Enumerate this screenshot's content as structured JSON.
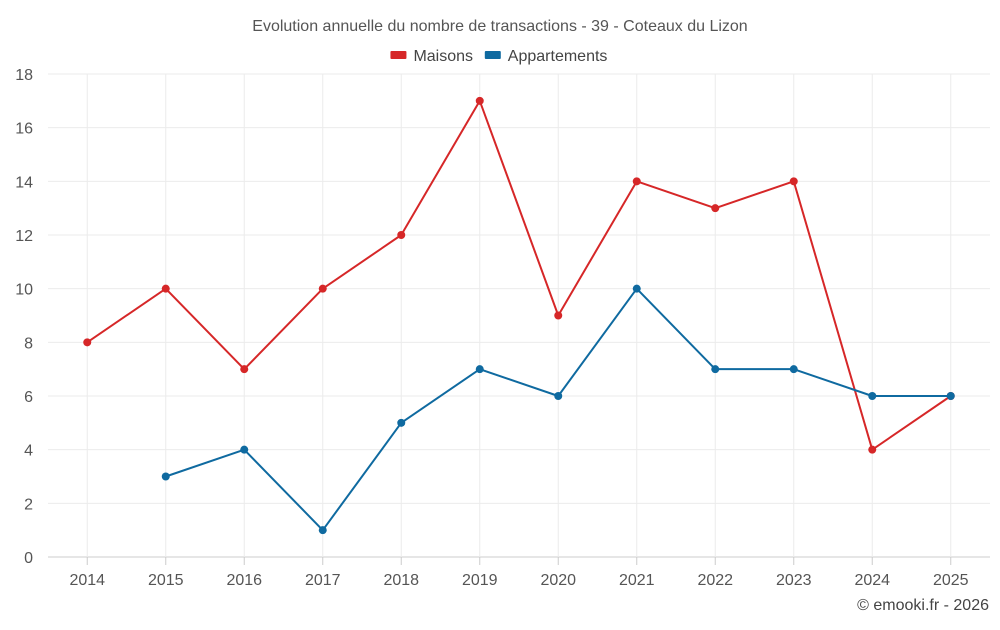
{
  "chart_data": {
    "type": "line",
    "title": "Evolution annuelle du nombre de transactions - 39 - Coteaux du Lizon",
    "xlabel": "",
    "ylabel": "",
    "categories": [
      "2014",
      "2015",
      "2016",
      "2017",
      "2018",
      "2019",
      "2020",
      "2021",
      "2022",
      "2023",
      "2024",
      "2025"
    ],
    "ylim": [
      0,
      18
    ],
    "yticks": [
      0,
      2,
      4,
      6,
      8,
      10,
      12,
      14,
      16,
      18
    ],
    "grid": true,
    "legend_position": "top-center",
    "series": [
      {
        "name": "Maisons",
        "color": "#d62728",
        "values": [
          8,
          10,
          7,
          10,
          12,
          17,
          9,
          14,
          13,
          14,
          4,
          6
        ]
      },
      {
        "name": "Appartements",
        "color": "#0f6aa0",
        "values": [
          null,
          3,
          4,
          1,
          5,
          7,
          6,
          10,
          7,
          7,
          6,
          6
        ]
      }
    ]
  },
  "credit": "© emooki.fr - 2026"
}
